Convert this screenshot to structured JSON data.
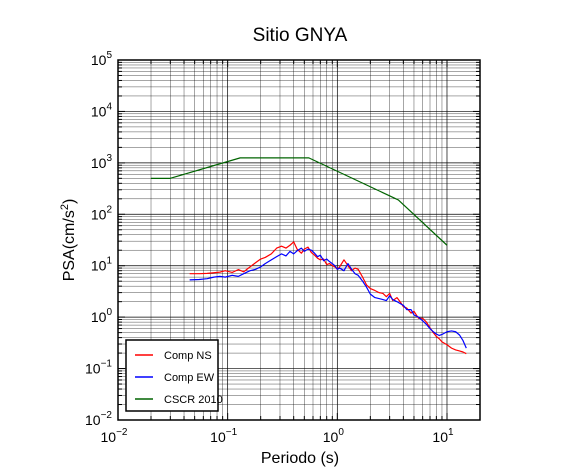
{
  "chart_data": {
    "type": "line",
    "title": "Sitio GNYA",
    "xlabel": "Periodo (s)",
    "ylabel_base": "PSA(cm/s",
    "ylabel_exp": "2",
    "ylabel_close": ")",
    "xscale": "log",
    "yscale": "log",
    "xlim": [
      0.01,
      20
    ],
    "ylim": [
      0.01,
      100000
    ],
    "grid": true,
    "legend_position": "bottom-left",
    "x_ticks": [
      {
        "value": 0.01,
        "base": "10",
        "exp": "−2"
      },
      {
        "value": 0.1,
        "base": "10",
        "exp": "−1"
      },
      {
        "value": 1,
        "base": "10",
        "exp": "0"
      },
      {
        "value": 10,
        "base": "10",
        "exp": "1"
      }
    ],
    "y_ticks": [
      {
        "value": 0.01,
        "base": "10",
        "exp": "−2"
      },
      {
        "value": 0.1,
        "base": "10",
        "exp": "−1"
      },
      {
        "value": 1,
        "base": "10",
        "exp": "0"
      },
      {
        "value": 10,
        "base": "10",
        "exp": "1"
      },
      {
        "value": 100,
        "base": "10",
        "exp": "2"
      },
      {
        "value": 1000,
        "base": "10",
        "exp": "3"
      },
      {
        "value": 10000,
        "base": "10",
        "exp": "4"
      },
      {
        "value": 100000,
        "base": "10",
        "exp": "5"
      }
    ],
    "series": [
      {
        "name": "Comp NS",
        "color": "#ff0000",
        "points": [
          [
            0.045,
            7.0
          ],
          [
            0.055,
            7.0
          ],
          [
            0.065,
            7.1
          ],
          [
            0.075,
            7.3
          ],
          [
            0.085,
            7.5
          ],
          [
            0.095,
            8.0
          ],
          [
            0.11,
            7.4
          ],
          [
            0.125,
            8.4
          ],
          [
            0.14,
            7.6
          ],
          [
            0.16,
            9.5
          ],
          [
            0.18,
            11.5
          ],
          [
            0.2,
            13.5
          ],
          [
            0.22,
            14.5
          ],
          [
            0.25,
            17.0
          ],
          [
            0.28,
            22.0
          ],
          [
            0.31,
            24.0
          ],
          [
            0.34,
            22.0
          ],
          [
            0.37,
            25.0
          ],
          [
            0.4,
            29.0
          ],
          [
            0.43,
            21.0
          ],
          [
            0.47,
            17.5
          ],
          [
            0.5,
            21.0
          ],
          [
            0.54,
            23.0
          ],
          [
            0.58,
            18.0
          ],
          [
            0.62,
            16.0
          ],
          [
            0.66,
            14.0
          ],
          [
            0.7,
            13.0
          ],
          [
            0.75,
            13.5
          ],
          [
            0.8,
            10.5
          ],
          [
            0.85,
            11.0
          ],
          [
            0.9,
            10.0
          ],
          [
            0.95,
            9.5
          ],
          [
            1.0,
            8.5
          ],
          [
            1.05,
            9.5
          ],
          [
            1.15,
            13.0
          ],
          [
            1.25,
            10.0
          ],
          [
            1.35,
            8.0
          ],
          [
            1.45,
            9.0
          ],
          [
            1.55,
            8.5
          ],
          [
            1.7,
            6.0
          ],
          [
            1.85,
            4.2
          ],
          [
            2.0,
            3.6
          ],
          [
            2.2,
            3.3
          ],
          [
            2.4,
            3.0
          ],
          [
            2.6,
            2.9
          ],
          [
            2.8,
            2.5
          ],
          [
            3.0,
            2.9
          ],
          [
            3.2,
            2.1
          ],
          [
            3.5,
            2.4
          ],
          [
            3.8,
            1.9
          ],
          [
            4.0,
            1.6
          ],
          [
            4.3,
            1.5
          ],
          [
            4.7,
            1.2
          ],
          [
            5.0,
            1.3
          ],
          [
            5.5,
            0.95
          ],
          [
            6.0,
            0.95
          ],
          [
            6.5,
            0.8
          ],
          [
            7.0,
            0.62
          ],
          [
            7.5,
            0.5
          ],
          [
            8.0,
            0.42
          ],
          [
            8.5,
            0.38
          ],
          [
            9.0,
            0.33
          ],
          [
            10.0,
            0.29
          ],
          [
            11.0,
            0.25
          ],
          [
            12.0,
            0.23
          ],
          [
            13.0,
            0.22
          ],
          [
            14.0,
            0.21
          ],
          [
            15.0,
            0.195
          ]
        ]
      },
      {
        "name": "Comp EW",
        "color": "#0000ff",
        "points": [
          [
            0.045,
            5.3
          ],
          [
            0.055,
            5.4
          ],
          [
            0.065,
            5.6
          ],
          [
            0.075,
            6.0
          ],
          [
            0.085,
            6.2
          ],
          [
            0.095,
            6.0
          ],
          [
            0.11,
            6.5
          ],
          [
            0.125,
            6.2
          ],
          [
            0.14,
            7.0
          ],
          [
            0.16,
            8.0
          ],
          [
            0.18,
            8.5
          ],
          [
            0.2,
            9.5
          ],
          [
            0.22,
            11.0
          ],
          [
            0.25,
            13.0
          ],
          [
            0.28,
            15.0
          ],
          [
            0.31,
            17.0
          ],
          [
            0.34,
            15.5
          ],
          [
            0.37,
            19.0
          ],
          [
            0.4,
            17.0
          ],
          [
            0.43,
            19.5
          ],
          [
            0.47,
            22.0
          ],
          [
            0.5,
            19.0
          ],
          [
            0.54,
            21.0
          ],
          [
            0.58,
            20.0
          ],
          [
            0.62,
            17.5
          ],
          [
            0.66,
            15.0
          ],
          [
            0.7,
            16.0
          ],
          [
            0.75,
            12.5
          ],
          [
            0.8,
            13.5
          ],
          [
            0.85,
            12.0
          ],
          [
            0.9,
            11.0
          ],
          [
            0.95,
            10.0
          ],
          [
            1.0,
            8.5
          ],
          [
            1.05,
            9.0
          ],
          [
            1.15,
            8.0
          ],
          [
            1.25,
            11.0
          ],
          [
            1.35,
            8.5
          ],
          [
            1.45,
            7.0
          ],
          [
            1.55,
            6.5
          ],
          [
            1.7,
            5.0
          ],
          [
            1.85,
            3.8
          ],
          [
            2.0,
            2.8
          ],
          [
            2.2,
            2.4
          ],
          [
            2.4,
            2.3
          ],
          [
            2.6,
            2.2
          ],
          [
            2.8,
            2.1
          ],
          [
            3.0,
            2.6
          ],
          [
            3.2,
            2.2
          ],
          [
            3.5,
            2.0
          ],
          [
            3.8,
            1.8
          ],
          [
            4.0,
            1.7
          ],
          [
            4.3,
            1.4
          ],
          [
            4.7,
            1.4
          ],
          [
            5.0,
            1.1
          ],
          [
            5.5,
            1.0
          ],
          [
            6.0,
            0.85
          ],
          [
            6.5,
            0.72
          ],
          [
            7.0,
            0.6
          ],
          [
            7.5,
            0.52
          ],
          [
            8.0,
            0.47
          ],
          [
            8.5,
            0.44
          ],
          [
            9.0,
            0.46
          ],
          [
            10.0,
            0.52
          ],
          [
            11.0,
            0.54
          ],
          [
            12.0,
            0.52
          ],
          [
            13.0,
            0.45
          ],
          [
            14.0,
            0.35
          ],
          [
            15.0,
            0.25
          ]
        ]
      },
      {
        "name": "CSCR 2010",
        "color": "#006400",
        "points": [
          [
            0.02,
            500
          ],
          [
            0.03,
            500
          ],
          [
            0.13,
            1250
          ],
          [
            0.55,
            1250
          ],
          [
            3.6,
            190
          ],
          [
            10.0,
            25
          ]
        ]
      }
    ]
  }
}
